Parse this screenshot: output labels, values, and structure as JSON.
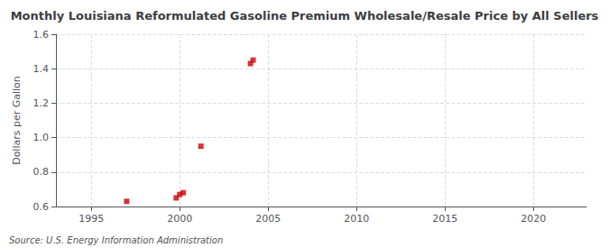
{
  "chart_data": {
    "type": "scatter",
    "title": "Monthly Louisiana Reformulated Gasoline Premium Wholesale/Resale Price by All Sellers",
    "ylabel": "Dollars per Gallon",
    "annotations": [
      "Source: U.S. Energy Information Administration"
    ],
    "x": [
      1997.0,
      1999.8,
      2000.0,
      2000.2,
      2001.2,
      2004.0,
      2004.15
    ],
    "values": [
      0.63,
      0.65,
      0.67,
      0.68,
      0.95,
      1.43,
      1.45
    ],
    "color": "#cc0000",
    "marker": "square",
    "xlim": [
      1993,
      2023
    ],
    "ylim": [
      0.6,
      1.6
    ],
    "xticks": [
      1995,
      2000,
      2005,
      2010,
      2015,
      2020
    ],
    "yticks": [
      0.6,
      0.8,
      {
        "value": 1.0,
        "label": "1.0"
      },
      1.2,
      1.4,
      1.6
    ],
    "grid": true
  }
}
